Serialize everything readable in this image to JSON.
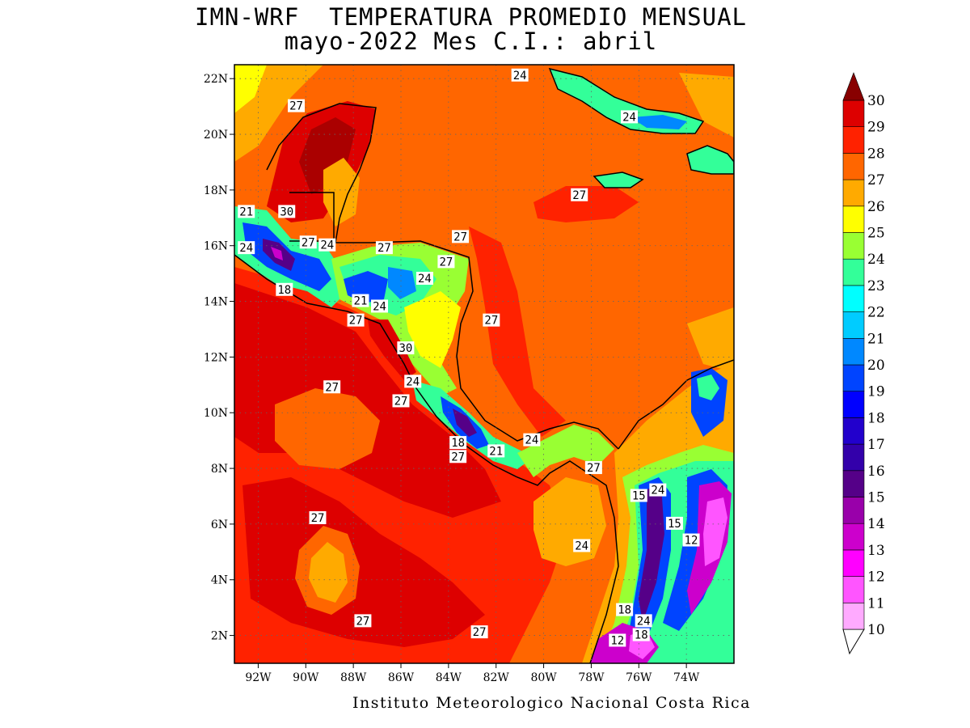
{
  "title": {
    "line1": "IMN-WRF  TEMPERATURA PROMEDIO MENSUAL",
    "line2": "mayo-2022 Mes C.I.: abril"
  },
  "credit": "Instituto Meteorologico Nacional Costa Rica",
  "map": {
    "lon_range": [
      -93,
      -72
    ],
    "lat_range": [
      1,
      22.5
    ],
    "lon_ticks": [
      {
        "value": -92,
        "label": "92W"
      },
      {
        "value": -90,
        "label": "90W"
      },
      {
        "value": -88,
        "label": "88W"
      },
      {
        "value": -86,
        "label": "86W"
      },
      {
        "value": -84,
        "label": "84W"
      },
      {
        "value": -82,
        "label": "82W"
      },
      {
        "value": -80,
        "label": "80W"
      },
      {
        "value": -78,
        "label": "78W"
      },
      {
        "value": -76,
        "label": "76W"
      },
      {
        "value": -74,
        "label": "74W"
      }
    ],
    "lat_ticks": [
      {
        "value": 2,
        "label": "2N"
      },
      {
        "value": 4,
        "label": "4N"
      },
      {
        "value": 6,
        "label": "6N"
      },
      {
        "value": 8,
        "label": "8N"
      },
      {
        "value": 10,
        "label": "10N"
      },
      {
        "value": 12,
        "label": "12N"
      },
      {
        "value": 14,
        "label": "14N"
      },
      {
        "value": 16,
        "label": "16N"
      },
      {
        "value": 18,
        "label": "18N"
      },
      {
        "value": 20,
        "label": "20N"
      },
      {
        "value": 22,
        "label": "22N"
      }
    ],
    "contour_labels": [
      {
        "lon": -90.4,
        "lat": 21.0,
        "text": "27"
      },
      {
        "lon": -81.0,
        "lat": 22.1,
        "text": "24"
      },
      {
        "lon": -76.4,
        "lat": 20.6,
        "text": "24"
      },
      {
        "lon": -78.5,
        "lat": 17.8,
        "text": "27"
      },
      {
        "lon": -92.5,
        "lat": 17.2,
        "text": "21"
      },
      {
        "lon": -90.8,
        "lat": 17.2,
        "text": "30"
      },
      {
        "lon": -92.5,
        "lat": 15.9,
        "text": "24"
      },
      {
        "lon": -89.9,
        "lat": 16.1,
        "text": "27"
      },
      {
        "lon": -89.1,
        "lat": 16.0,
        "text": "24"
      },
      {
        "lon": -86.7,
        "lat": 15.9,
        "text": "27"
      },
      {
        "lon": -83.5,
        "lat": 16.3,
        "text": "27"
      },
      {
        "lon": -84.1,
        "lat": 15.4,
        "text": "27"
      },
      {
        "lon": -85.0,
        "lat": 14.8,
        "text": "24"
      },
      {
        "lon": -90.9,
        "lat": 14.4,
        "text": "18"
      },
      {
        "lon": -87.7,
        "lat": 14.0,
        "text": "21"
      },
      {
        "lon": -86.9,
        "lat": 13.8,
        "text": "24"
      },
      {
        "lon": -87.9,
        "lat": 13.3,
        "text": "27"
      },
      {
        "lon": -82.2,
        "lat": 13.3,
        "text": "27"
      },
      {
        "lon": -85.8,
        "lat": 12.3,
        "text": "30"
      },
      {
        "lon": -85.5,
        "lat": 11.1,
        "text": "24"
      },
      {
        "lon": -88.9,
        "lat": 10.9,
        "text": "27"
      },
      {
        "lon": -86.0,
        "lat": 10.4,
        "text": "27"
      },
      {
        "lon": -83.6,
        "lat": 8.9,
        "text": "18"
      },
      {
        "lon": -82.0,
        "lat": 8.6,
        "text": "21"
      },
      {
        "lon": -80.5,
        "lat": 9.0,
        "text": "24"
      },
      {
        "lon": -83.6,
        "lat": 8.4,
        "text": "27"
      },
      {
        "lon": -77.9,
        "lat": 8.0,
        "text": "27"
      },
      {
        "lon": -76.0,
        "lat": 7.0,
        "text": "15"
      },
      {
        "lon": -75.2,
        "lat": 7.2,
        "text": "24"
      },
      {
        "lon": -89.5,
        "lat": 6.2,
        "text": "27"
      },
      {
        "lon": -74.5,
        "lat": 6.0,
        "text": "15"
      },
      {
        "lon": -73.8,
        "lat": 5.4,
        "text": "12"
      },
      {
        "lon": -78.4,
        "lat": 5.2,
        "text": "24"
      },
      {
        "lon": -76.6,
        "lat": 2.9,
        "text": "18"
      },
      {
        "lon": -75.8,
        "lat": 2.5,
        "text": "24"
      },
      {
        "lon": -87.6,
        "lat": 2.5,
        "text": "27"
      },
      {
        "lon": -82.7,
        "lat": 2.1,
        "text": "27"
      },
      {
        "lon": -75.9,
        "lat": 2.0,
        "text": "18"
      },
      {
        "lon": -76.9,
        "lat": 1.8,
        "text": "12"
      }
    ]
  },
  "colorbar": {
    "levels": [
      10,
      11,
      12,
      13,
      14,
      15,
      16,
      17,
      18,
      19,
      20,
      21,
      22,
      23,
      24,
      25,
      26,
      27,
      28,
      29,
      30
    ],
    "colors": [
      "#ffaaff",
      "#ff55ff",
      "#ff00ff",
      "#cc00cc",
      "#9900aa",
      "#550088",
      "#3300aa",
      "#2200cc",
      "#0000ff",
      "#0044ff",
      "#0088ff",
      "#00ccff",
      "#00ffff",
      "#33ff99",
      "#99ff33",
      "#ffff00",
      "#ffaa00",
      "#ff6600",
      "#ff2200",
      "#dd0000",
      "#aa0000"
    ],
    "max_color": "#880000"
  },
  "fill_colors": {
    "sea_main": "#ff6600",
    "sea_warm": "#ff2200",
    "sea_hot": "#dd0000",
    "sea_cool": "#ffaa00",
    "sea_yellow": "#ffff00",
    "land_green": "#99ff33",
    "land_cyan": "#33ff99",
    "land_blue": "#0044ff",
    "land_purple": "#550088",
    "land_magenta": "#cc00cc"
  }
}
